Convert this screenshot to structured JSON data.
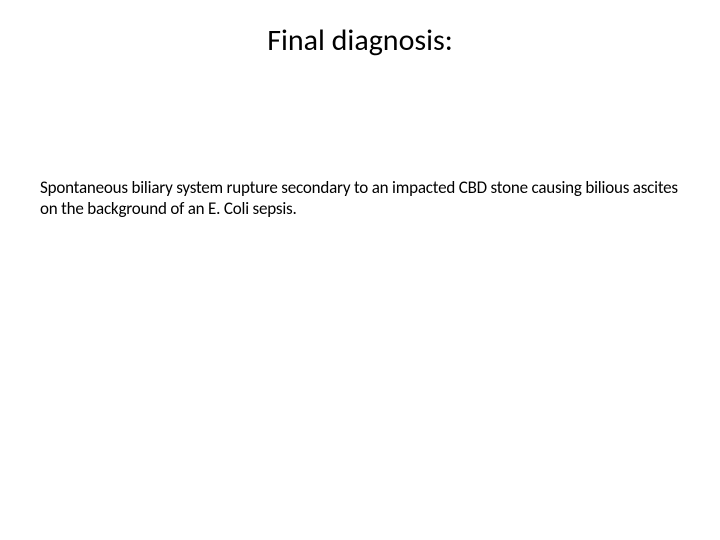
{
  "slide": {
    "title": "Final diagnosis:",
    "body": "Spontaneous biliary system rupture secondary to an impacted CBD stone causing bilious ascites on the background of an E. Coli sepsis."
  },
  "style": {
    "background_color": "#ffffff",
    "text_color": "#000000",
    "title_fontsize": 30,
    "body_fontsize": 17,
    "font_family": "Calibri"
  }
}
